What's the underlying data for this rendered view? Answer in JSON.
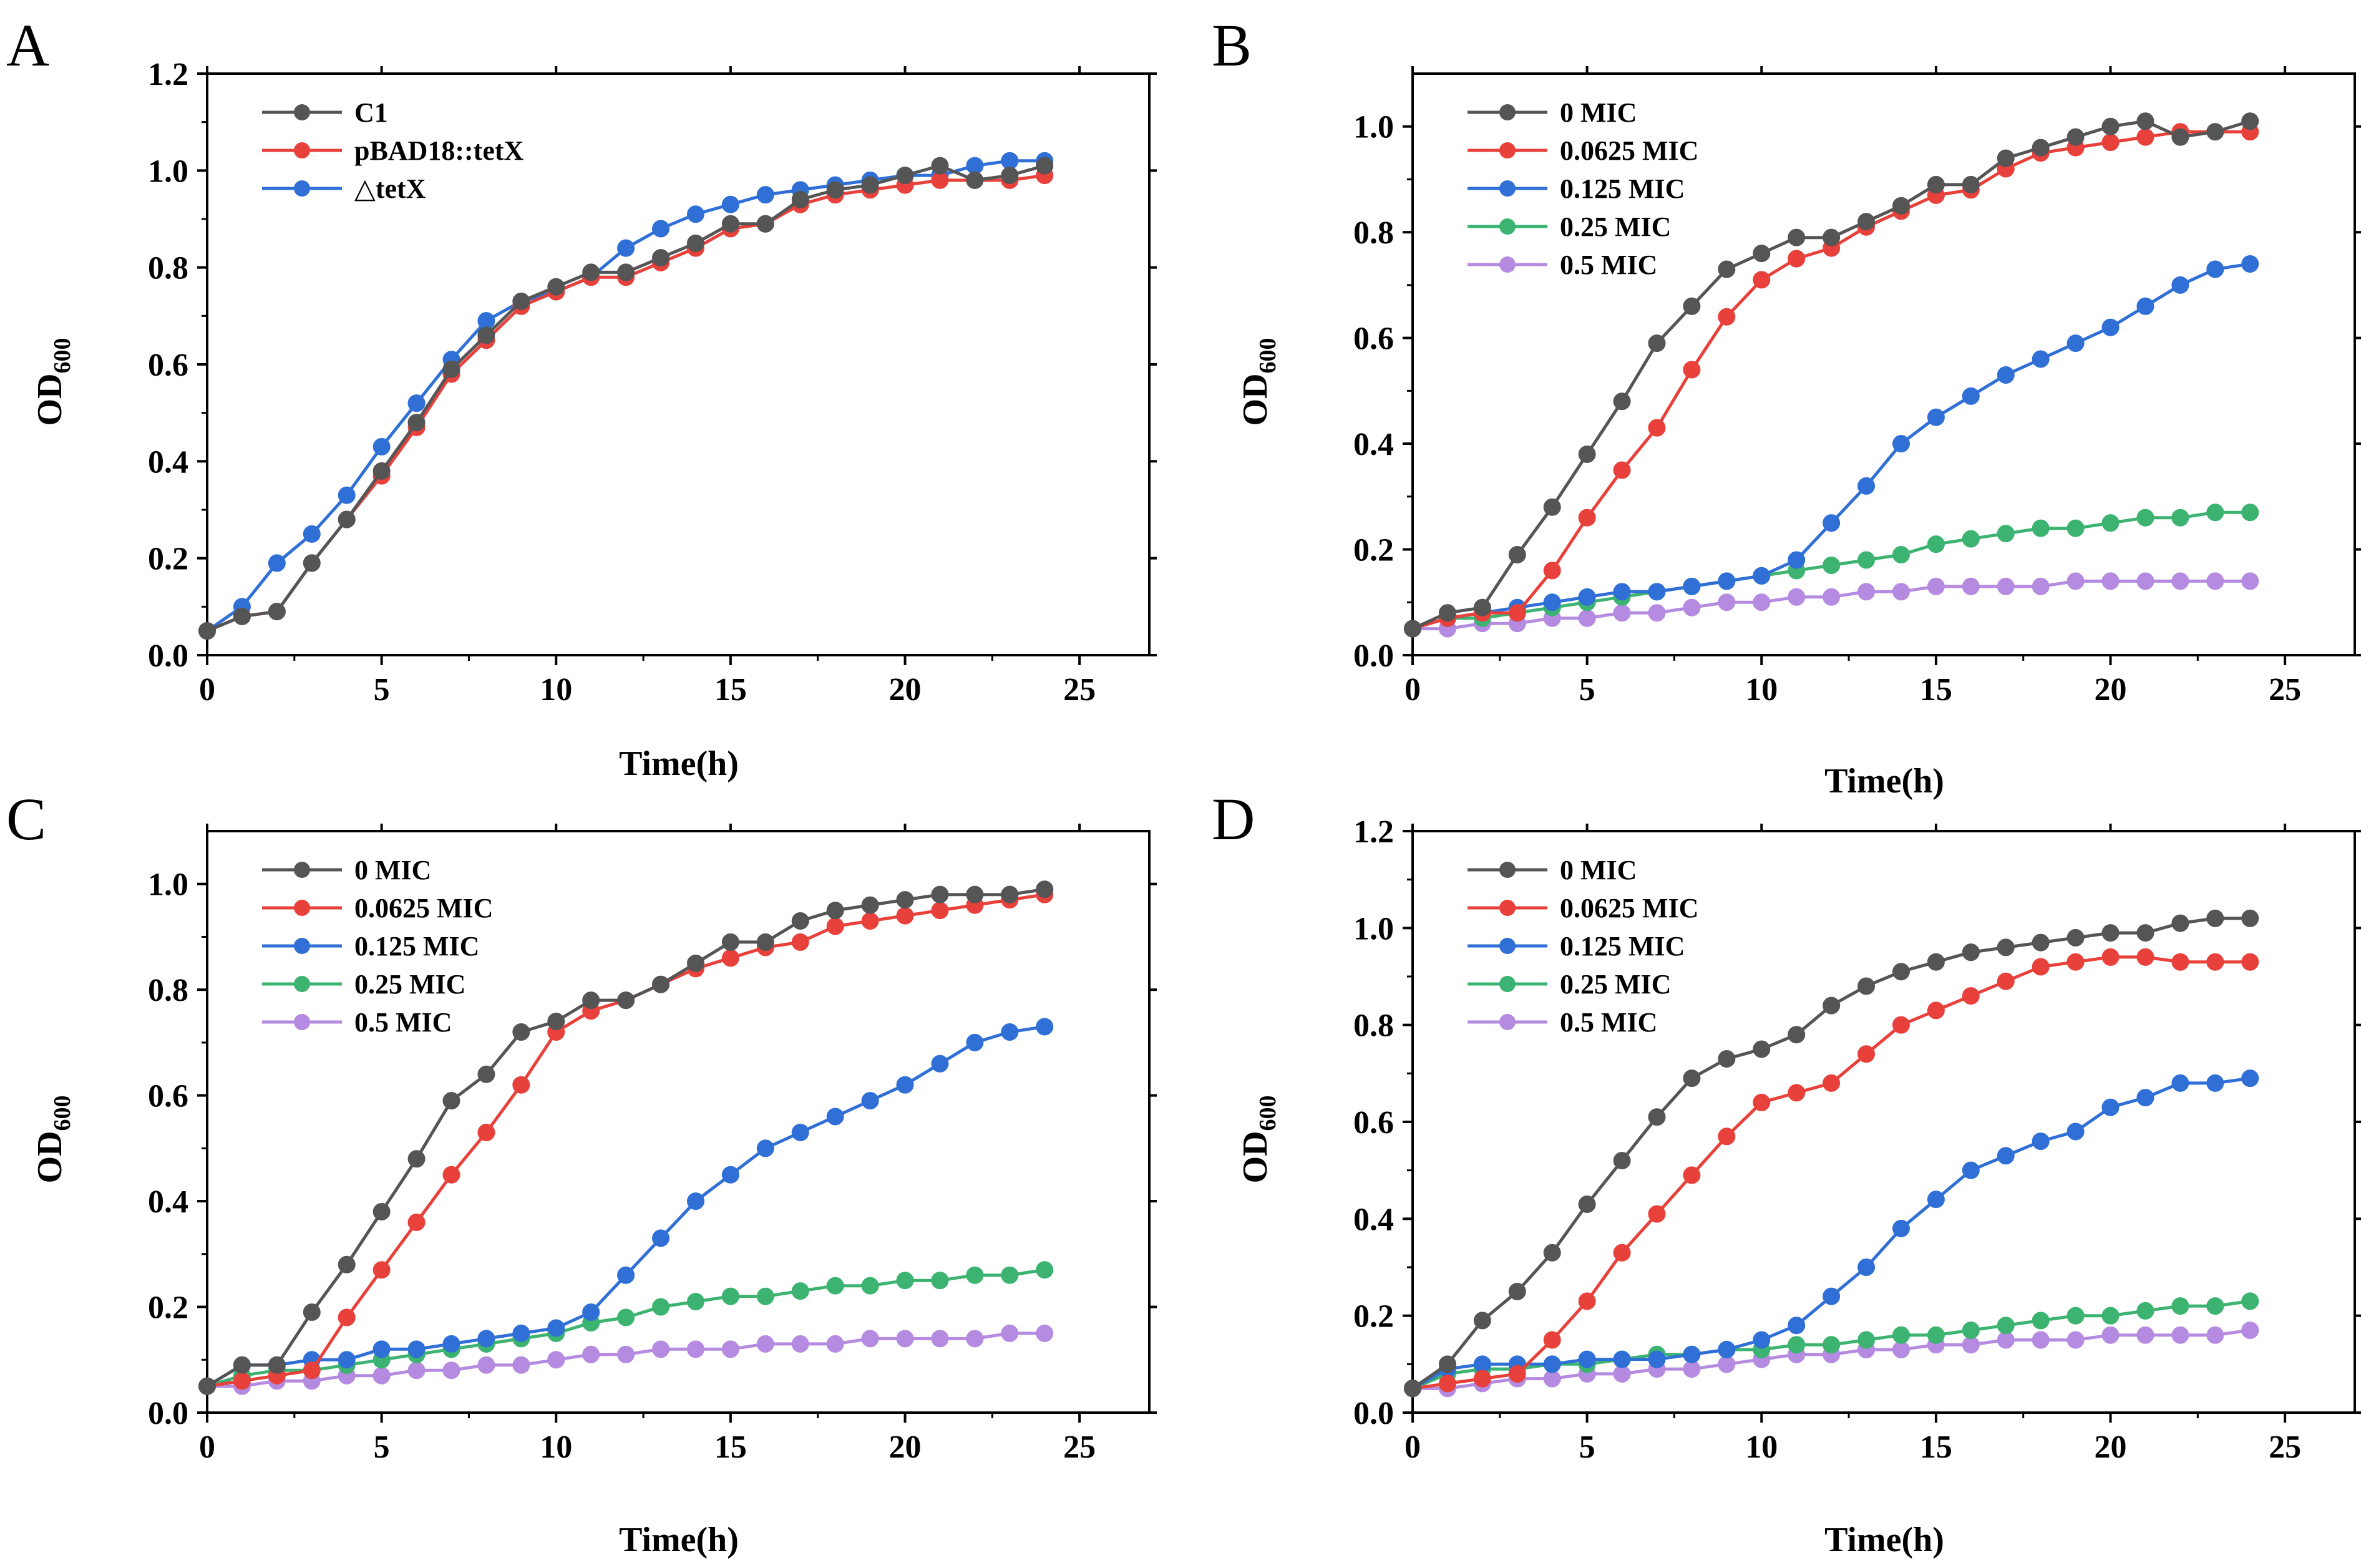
{
  "chart_data": [
    {
      "panel": "A",
      "type": "line",
      "xlabel": "Time(h)",
      "ylabel": "OD",
      "ylabel_sub": "600",
      "xlim": [
        0,
        27
      ],
      "ylim": [
        0,
        1.2
      ],
      "xticks": [
        0,
        5,
        10,
        15,
        20,
        25
      ],
      "yticks": [
        0.0,
        0.2,
        0.4,
        0.6,
        0.8,
        1.0,
        1.2
      ],
      "ytick_labels": [
        "0.0",
        "0.2",
        "0.4",
        "0.6",
        "0.8",
        "1.0",
        "1.2"
      ],
      "legend_position": "top-left",
      "x": [
        0,
        1,
        2,
        3,
        4,
        5,
        6,
        7,
        8,
        9,
        10,
        11,
        12,
        13,
        14,
        15,
        16,
        17,
        18,
        19,
        20,
        21,
        22,
        23,
        24
      ],
      "series": [
        {
          "name": "C1",
          "color": "#555555",
          "values": [
            0.05,
            0.08,
            0.09,
            0.19,
            0.28,
            0.38,
            0.48,
            0.59,
            0.66,
            0.73,
            0.76,
            0.79,
            0.79,
            0.82,
            0.85,
            0.89,
            0.89,
            0.94,
            0.96,
            0.97,
            0.99,
            1.01,
            0.98,
            0.99,
            1.01
          ]
        },
        {
          "name": "pBAD18::tetX",
          "color": "#e8403a",
          "values": [
            0.05,
            0.08,
            0.09,
            0.19,
            0.28,
            0.37,
            0.47,
            0.58,
            0.65,
            0.72,
            0.75,
            0.78,
            0.78,
            0.81,
            0.84,
            0.88,
            0.89,
            0.93,
            0.95,
            0.96,
            0.97,
            0.98,
            0.98,
            0.98,
            0.99
          ]
        },
        {
          "name": "△tetX",
          "color": "#2f6fd6",
          "values": [
            0.05,
            0.1,
            0.19,
            0.25,
            0.33,
            0.43,
            0.52,
            0.61,
            0.69,
            0.73,
            0.75,
            0.78,
            0.84,
            0.88,
            0.91,
            0.93,
            0.95,
            0.96,
            0.97,
            0.98,
            0.99,
            0.99,
            1.01,
            1.02,
            1.02
          ]
        }
      ]
    },
    {
      "panel": "B",
      "type": "line",
      "xlabel": "Time(h)",
      "ylabel": "OD",
      "ylabel_sub": "600",
      "xlim": [
        0,
        27
      ],
      "ylim": [
        0,
        1.1
      ],
      "xticks": [
        0,
        5,
        10,
        15,
        20,
        25
      ],
      "yticks": [
        0.0,
        0.2,
        0.4,
        0.6,
        0.8,
        1.0
      ],
      "ytick_labels": [
        "0.0",
        "0.2",
        "0.4",
        "0.6",
        "0.8",
        "1.0"
      ],
      "legend_position": "top-left",
      "x": [
        0,
        1,
        2,
        3,
        4,
        5,
        6,
        7,
        8,
        9,
        10,
        11,
        12,
        13,
        14,
        15,
        16,
        17,
        18,
        19,
        20,
        21,
        22,
        23,
        24
      ],
      "series": [
        {
          "name": "0 MIC",
          "color": "#555555",
          "values": [
            0.05,
            0.08,
            0.09,
            0.19,
            0.28,
            0.38,
            0.48,
            0.59,
            0.66,
            0.73,
            0.76,
            0.79,
            0.79,
            0.82,
            0.85,
            0.89,
            0.89,
            0.94,
            0.96,
            0.98,
            1.0,
            1.01,
            0.98,
            0.99,
            1.01
          ]
        },
        {
          "name": "0.0625 MIC",
          "color": "#e8403a",
          "values": [
            0.05,
            0.07,
            0.08,
            0.08,
            0.16,
            0.26,
            0.35,
            0.43,
            0.54,
            0.64,
            0.71,
            0.75,
            0.77,
            0.81,
            0.84,
            0.87,
            0.88,
            0.92,
            0.95,
            0.96,
            0.97,
            0.98,
            0.99,
            0.99,
            0.99
          ]
        },
        {
          "name": "0.125 MIC",
          "color": "#2f6fd6",
          "values": [
            0.05,
            0.07,
            0.08,
            0.09,
            0.1,
            0.11,
            0.12,
            0.12,
            0.13,
            0.14,
            0.15,
            0.18,
            0.25,
            0.32,
            0.4,
            0.45,
            0.49,
            0.53,
            0.56,
            0.59,
            0.62,
            0.66,
            0.7,
            0.73,
            0.74
          ]
        },
        {
          "name": "0.25 MIC",
          "color": "#3cb371",
          "values": [
            0.05,
            0.07,
            0.07,
            0.08,
            0.09,
            0.1,
            0.11,
            0.12,
            0.13,
            0.14,
            0.15,
            0.16,
            0.17,
            0.18,
            0.19,
            0.21,
            0.22,
            0.23,
            0.24,
            0.24,
            0.25,
            0.26,
            0.26,
            0.27,
            0.27
          ]
        },
        {
          "name": "0.5 MIC",
          "color": "#b48be0",
          "values": [
            0.05,
            0.05,
            0.06,
            0.06,
            0.07,
            0.07,
            0.08,
            0.08,
            0.09,
            0.1,
            0.1,
            0.11,
            0.11,
            0.12,
            0.12,
            0.13,
            0.13,
            0.13,
            0.13,
            0.14,
            0.14,
            0.14,
            0.14,
            0.14,
            0.14
          ]
        }
      ]
    },
    {
      "panel": "C",
      "type": "line",
      "xlabel": "Time(h)",
      "ylabel": "OD",
      "ylabel_sub": "600",
      "xlim": [
        0,
        27
      ],
      "ylim": [
        0,
        1.1
      ],
      "xticks": [
        0,
        5,
        10,
        15,
        20,
        25
      ],
      "yticks": [
        0.0,
        0.2,
        0.4,
        0.6,
        0.8,
        1.0
      ],
      "ytick_labels": [
        "0.0",
        "0.2",
        "0.4",
        "0.6",
        "0.8",
        "1.0"
      ],
      "legend_position": "top-left",
      "x": [
        0,
        1,
        2,
        3,
        4,
        5,
        6,
        7,
        8,
        9,
        10,
        11,
        12,
        13,
        14,
        15,
        16,
        17,
        18,
        19,
        20,
        21,
        22,
        23,
        24
      ],
      "series": [
        {
          "name": "0 MIC",
          "color": "#555555",
          "values": [
            0.05,
            0.09,
            0.09,
            0.19,
            0.28,
            0.38,
            0.48,
            0.59,
            0.64,
            0.72,
            0.74,
            0.78,
            0.78,
            0.81,
            0.85,
            0.89,
            0.89,
            0.93,
            0.95,
            0.96,
            0.97,
            0.98,
            0.98,
            0.98,
            0.99
          ]
        },
        {
          "name": "0.0625 MIC",
          "color": "#e8403a",
          "values": [
            0.05,
            0.06,
            0.07,
            0.08,
            0.18,
            0.27,
            0.36,
            0.45,
            0.53,
            0.62,
            0.72,
            0.76,
            0.78,
            0.81,
            0.84,
            0.86,
            0.88,
            0.89,
            0.92,
            0.93,
            0.94,
            0.95,
            0.96,
            0.97,
            0.98
          ]
        },
        {
          "name": "0.125 MIC",
          "color": "#2f6fd6",
          "values": [
            0.05,
            0.09,
            0.09,
            0.1,
            0.1,
            0.12,
            0.12,
            0.13,
            0.14,
            0.15,
            0.16,
            0.19,
            0.26,
            0.33,
            0.4,
            0.45,
            0.5,
            0.53,
            0.56,
            0.59,
            0.62,
            0.66,
            0.7,
            0.72,
            0.73
          ]
        },
        {
          "name": "0.25 MIC",
          "color": "#3cb371",
          "values": [
            0.05,
            0.07,
            0.08,
            0.08,
            0.09,
            0.1,
            0.11,
            0.12,
            0.13,
            0.14,
            0.15,
            0.17,
            0.18,
            0.2,
            0.21,
            0.22,
            0.22,
            0.23,
            0.24,
            0.24,
            0.25,
            0.25,
            0.26,
            0.26,
            0.27
          ]
        },
        {
          "name": "0.5 MIC",
          "color": "#b48be0",
          "values": [
            0.05,
            0.05,
            0.06,
            0.06,
            0.07,
            0.07,
            0.08,
            0.08,
            0.09,
            0.09,
            0.1,
            0.11,
            0.11,
            0.12,
            0.12,
            0.12,
            0.13,
            0.13,
            0.13,
            0.14,
            0.14,
            0.14,
            0.14,
            0.15,
            0.15
          ]
        }
      ]
    },
    {
      "panel": "D",
      "type": "line",
      "xlabel": "Time(h)",
      "ylabel": "OD",
      "ylabel_sub": "600",
      "xlim": [
        0,
        27
      ],
      "ylim": [
        0,
        1.2
      ],
      "xticks": [
        0,
        5,
        10,
        15,
        20,
        25
      ],
      "yticks": [
        0.0,
        0.2,
        0.4,
        0.6,
        0.8,
        1.0,
        1.2
      ],
      "ytick_labels": [
        "0.0",
        "0.2",
        "0.4",
        "0.6",
        "0.8",
        "1.0",
        "1.2"
      ],
      "legend_position": "top-left",
      "x": [
        0,
        1,
        2,
        3,
        4,
        5,
        6,
        7,
        8,
        9,
        10,
        11,
        12,
        13,
        14,
        15,
        16,
        17,
        18,
        19,
        20,
        21,
        22,
        23,
        24
      ],
      "series": [
        {
          "name": "0 MIC",
          "color": "#555555",
          "values": [
            0.05,
            0.1,
            0.19,
            0.25,
            0.33,
            0.43,
            0.52,
            0.61,
            0.69,
            0.73,
            0.75,
            0.78,
            0.84,
            0.88,
            0.91,
            0.93,
            0.95,
            0.96,
            0.97,
            0.98,
            0.99,
            0.99,
            1.01,
            1.02,
            1.02
          ]
        },
        {
          "name": "0.0625 MIC",
          "color": "#e8403a",
          "values": [
            0.05,
            0.06,
            0.07,
            0.08,
            0.15,
            0.23,
            0.33,
            0.41,
            0.49,
            0.57,
            0.64,
            0.66,
            0.68,
            0.74,
            0.8,
            0.83,
            0.86,
            0.89,
            0.92,
            0.93,
            0.94,
            0.94,
            0.93,
            0.93,
            0.93
          ]
        },
        {
          "name": "0.125 MIC",
          "color": "#2f6fd6",
          "values": [
            0.05,
            0.09,
            0.1,
            0.1,
            0.1,
            0.11,
            0.11,
            0.11,
            0.12,
            0.13,
            0.15,
            0.18,
            0.24,
            0.3,
            0.38,
            0.44,
            0.5,
            0.53,
            0.56,
            0.58,
            0.63,
            0.65,
            0.68,
            0.68,
            0.69
          ]
        },
        {
          "name": "0.25 MIC",
          "color": "#3cb371",
          "values": [
            0.05,
            0.08,
            0.09,
            0.09,
            0.1,
            0.1,
            0.11,
            0.12,
            0.12,
            0.13,
            0.13,
            0.14,
            0.14,
            0.15,
            0.16,
            0.16,
            0.17,
            0.18,
            0.19,
            0.2,
            0.2,
            0.21,
            0.22,
            0.22,
            0.23
          ]
        },
        {
          "name": "0.5 MIC",
          "color": "#b48be0",
          "values": [
            0.05,
            0.05,
            0.06,
            0.07,
            0.07,
            0.08,
            0.08,
            0.09,
            0.09,
            0.1,
            0.11,
            0.12,
            0.12,
            0.13,
            0.13,
            0.14,
            0.14,
            0.15,
            0.15,
            0.15,
            0.16,
            0.16,
            0.16,
            0.16,
            0.17
          ]
        }
      ]
    }
  ]
}
